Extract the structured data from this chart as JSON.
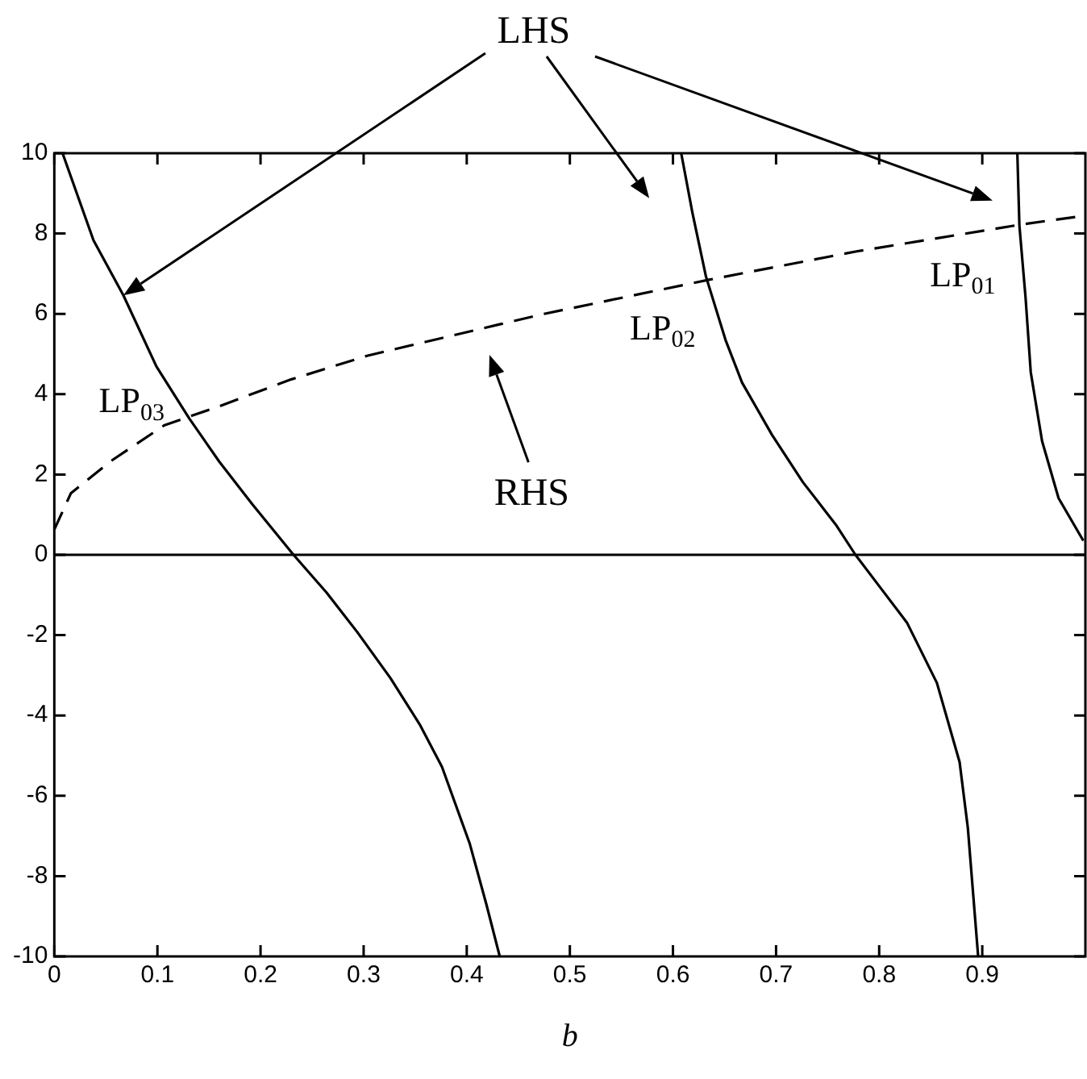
{
  "chart_data": {
    "type": "line",
    "xlabel": "b",
    "xlim": [
      0,
      1
    ],
    "xticks": [
      0,
      0.1,
      0.2,
      0.3,
      0.4,
      0.5,
      0.6,
      0.7,
      0.8,
      0.9
    ],
    "ylim": [
      -10,
      10
    ],
    "yticks": [
      -10,
      -8,
      -6,
      -4,
      -2,
      0,
      2,
      4,
      6,
      8,
      10
    ],
    "grid": false,
    "legend": false,
    "marker": "none",
    "series": [
      {
        "color": "#000000",
        "line_style": "solid",
        "x": [
          0.934,
          0.936,
          0.942,
          0.947,
          0.958,
          0.974,
          0.998
        ],
        "values": [
          10,
          8.2,
          6.4,
          4.55,
          2.83,
          1.41,
          0.35
        ]
      },
      {
        "color": "#000000",
        "line_style": "solid",
        "x": [
          0.608,
          0.619,
          0.632,
          0.651,
          0.667,
          0.696,
          0.726,
          0.758,
          0.777,
          0.798,
          0.827,
          0.856,
          0.878,
          0.886,
          0.896
        ],
        "values": [
          10,
          8.5,
          6.93,
          5.35,
          4.29,
          2.99,
          1.81,
          0.75,
          0,
          -0.71,
          -1.69,
          -3.19,
          -5.16,
          -6.8,
          -10
        ]
      },
      {
        "color": "#000000",
        "line_style": "solid",
        "x": [
          0.008,
          0.038,
          0.067,
          0.099,
          0.131,
          0.16,
          0.192,
          0.232,
          0.264,
          0.294,
          0.326,
          0.355,
          0.376,
          0.403,
          0.419,
          0.432
        ],
        "values": [
          10,
          7.83,
          6.46,
          4.69,
          3.39,
          2.32,
          1.26,
          0,
          -0.94,
          -1.93,
          -3.07,
          -4.25,
          -5.28,
          -7.2,
          -8.7,
          -10
        ]
      },
      {
        "color": "#000000",
        "line_style": "dashed",
        "x": [
          0,
          0.016,
          0.054,
          0.107,
          0.16,
          0.23,
          0.304,
          0.432,
          0.475,
          0.635,
          0.779,
          0.939,
          0.995
        ],
        "values": [
          0.63,
          1.53,
          2.32,
          3.23,
          3.7,
          4.37,
          4.96,
          5.74,
          6.0,
          6.85,
          7.56,
          8.23,
          8.43
        ]
      }
    ],
    "ref_lines": [
      {
        "axis": "y",
        "value": 0,
        "color": "#000000",
        "line_style": "solid"
      }
    ],
    "annotations": [
      "LHS",
      "RHS",
      "LP$_{01}$",
      "LP$_{02}$",
      "LP$_{03}$"
    ]
  }
}
